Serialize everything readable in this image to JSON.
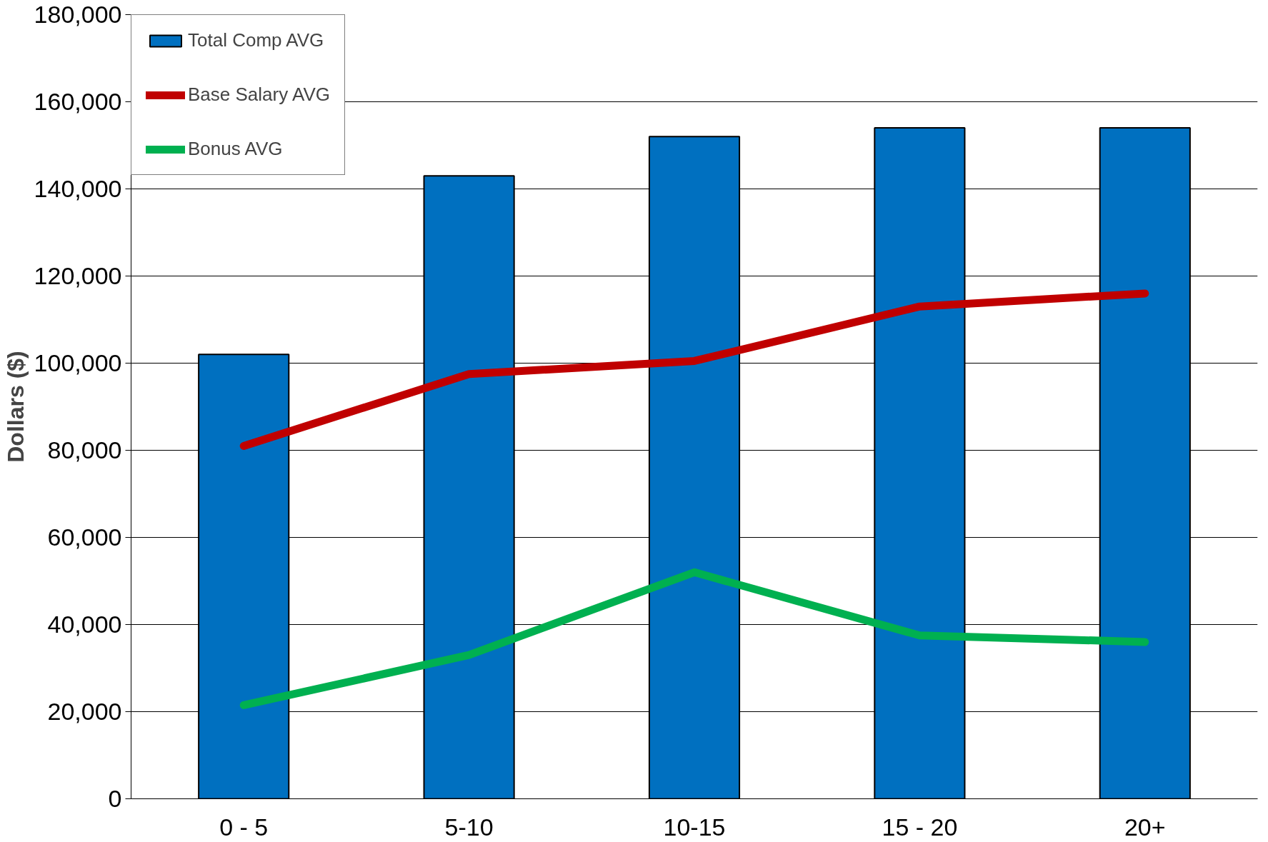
{
  "chart_data": {
    "type": "bar",
    "ylabel": "Dollars ($)",
    "categories": [
      "0 - 5",
      "5-10",
      "10-15",
      "15 - 20",
      "20+"
    ],
    "series": [
      {
        "name": "Total Comp AVG",
        "color": "#0070c0",
        "values": [
          102000,
          143000,
          152000,
          154000,
          154000
        ]
      },
      {
        "name": "Base Salary AVG",
        "type": "line",
        "color": "#c00000",
        "values": [
          81000,
          97500,
          100500,
          113000,
          116000
        ]
      },
      {
        "name": "Bonus AVG",
        "type": "line",
        "color": "#00b050",
        "values": [
          21500,
          33000,
          52000,
          37500,
          36000
        ]
      }
    ],
    "ylim": [
      0,
      180000
    ],
    "yticks": [
      {
        "value": 0,
        "label": "0"
      },
      {
        "value": 20000,
        "label": "20,000"
      },
      {
        "value": 40000,
        "label": "40,000"
      },
      {
        "value": 60000,
        "label": "60,000"
      },
      {
        "value": 80000,
        "label": "80,000"
      },
      {
        "value": 100000,
        "label": "100,000"
      },
      {
        "value": 120000,
        "label": "120,000"
      },
      {
        "value": 140000,
        "label": "140,000"
      },
      {
        "value": 160000,
        "label": "160,000"
      },
      {
        "value": 180000,
        "label": "180,000"
      }
    ],
    "grid": "y",
    "legend": "top left",
    "marker": "none",
    "line_style": "solid"
  }
}
